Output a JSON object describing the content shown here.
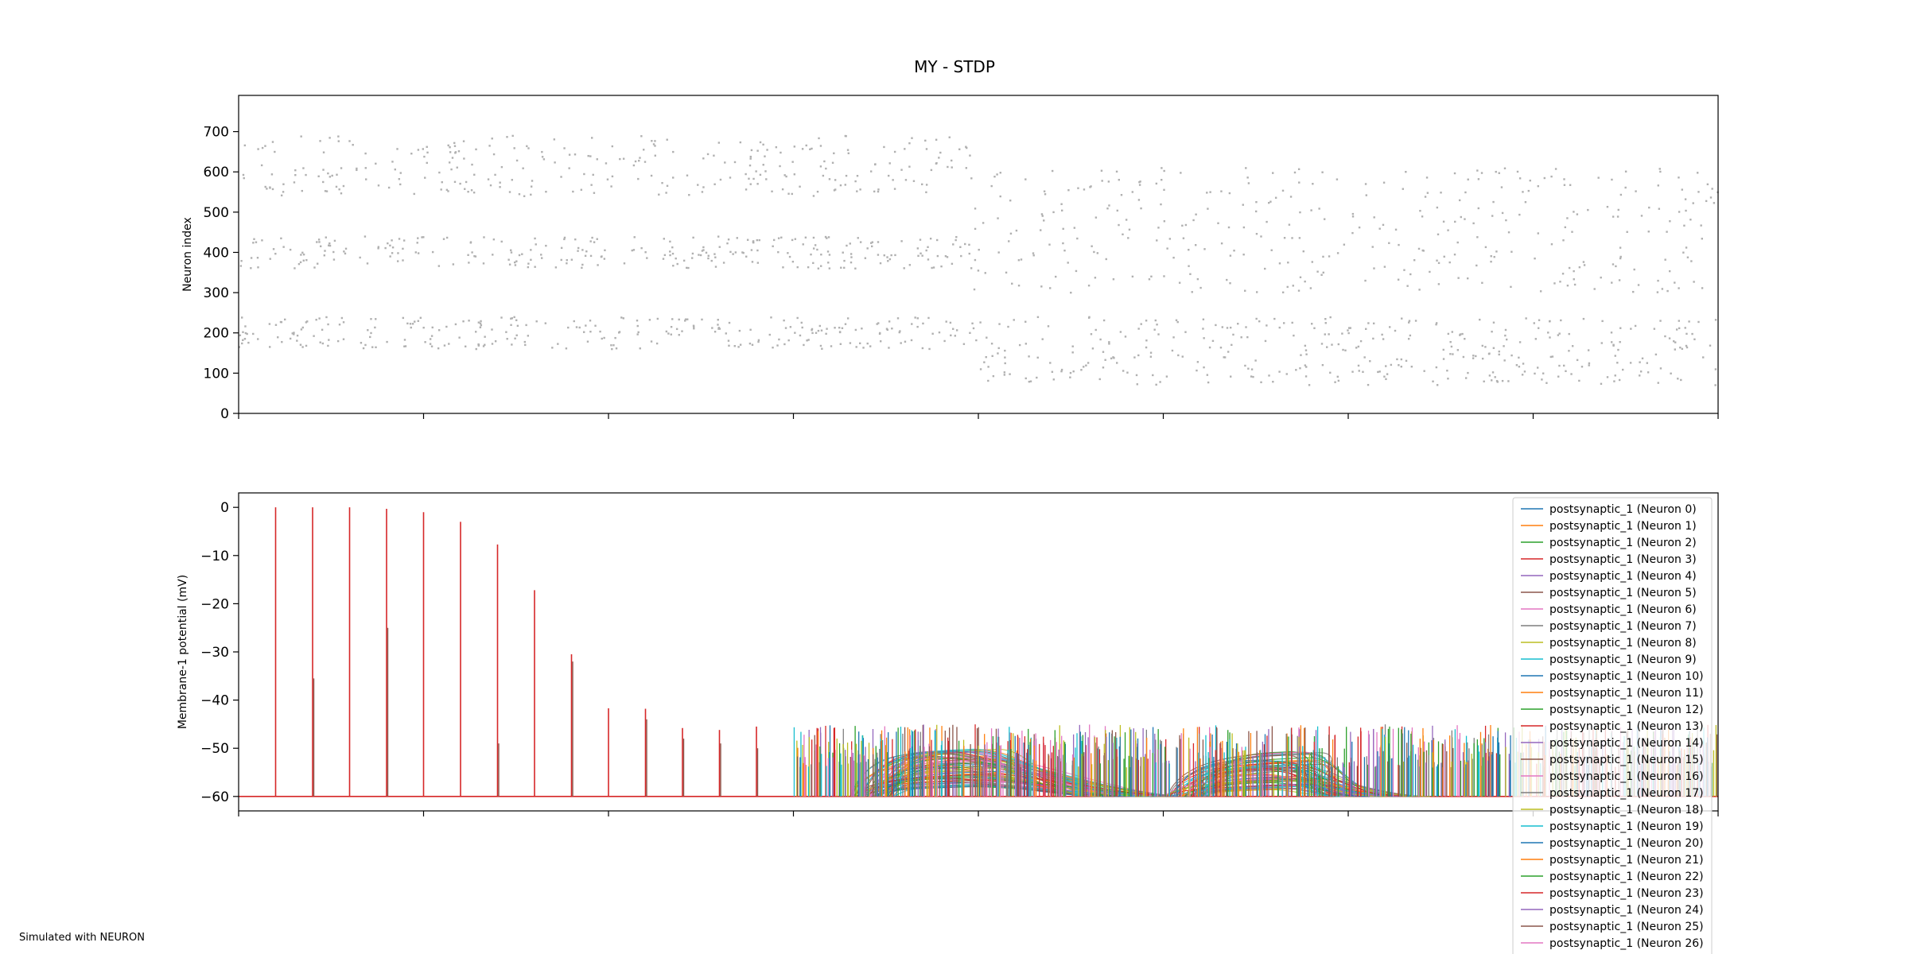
{
  "figure": {
    "title": "MY - STDP",
    "footer": "Simulated with NEURON"
  },
  "chart_data": [
    {
      "type": "scatter",
      "title": "",
      "xlabel": "",
      "ylabel": "Neuron index",
      "ylim": [
        0,
        790
      ],
      "xlim": [
        0,
        8
      ],
      "yticks": [
        0,
        100,
        200,
        300,
        400,
        500,
        600,
        700
      ],
      "xtick_count": 9,
      "show_xtick_labels": false,
      "grid": false,
      "marker_color": "#b0b0b0",
      "phases": [
        {
          "x_range": [
            0,
            3.97
          ],
          "bands": [
            [
              160,
              240
            ],
            [
              360,
              440
            ],
            [
              540,
              690
            ]
          ],
          "density": 1.0
        },
        {
          "x_range": [
            3.97,
            8
          ],
          "bands": [
            [
              70,
              240
            ],
            [
              300,
              610
            ]
          ],
          "density": 0.85
        }
      ]
    },
    {
      "type": "line",
      "title": "",
      "xlabel": "",
      "ylabel": "Membrane-1 potential (mV)",
      "ylim": [
        -63,
        3
      ],
      "xlim": [
        0,
        8
      ],
      "yticks": [
        0,
        -10,
        -20,
        -30,
        -40,
        -50,
        -60
      ],
      "xtick_count": 9,
      "show_xtick_labels": false,
      "grid": false,
      "resting_potential": -60,
      "spikes": [
        {
          "x": 0.2,
          "peak": 0,
          "dark_peak": -60
        },
        {
          "x": 0.4,
          "peak": 0,
          "dark_peak": -35.5
        },
        {
          "x": 0.6,
          "peak": 0,
          "dark_peak": -60
        },
        {
          "x": 0.8,
          "peak": -0.3,
          "dark_peak": -25
        },
        {
          "x": 1.0,
          "peak": -1,
          "dark_peak": -60
        },
        {
          "x": 1.2,
          "peak": -3,
          "dark_peak": -60
        },
        {
          "x": 1.4,
          "peak": -7.7,
          "dark_peak": -49
        },
        {
          "x": 1.6,
          "peak": -17.2,
          "dark_peak": -60
        },
        {
          "x": 1.8,
          "peak": -30.5,
          "dark_peak": -32
        },
        {
          "x": 2.0,
          "peak": -41.7,
          "dark_peak": -60
        },
        {
          "x": 2.2,
          "peak": -41.8,
          "dark_peak": -44
        },
        {
          "x": 2.4,
          "peak": -45.8,
          "dark_peak": -48
        },
        {
          "x": 2.6,
          "peak": -46.2,
          "dark_peak": -49
        },
        {
          "x": 2.8,
          "peak": -45.5,
          "dark_peak": -50
        }
      ],
      "dense_region": {
        "x_range": [
          3.0,
          8.0
        ],
        "peak_range": [
          -54,
          -45
        ],
        "base": -60
      },
      "bumps": [
        {
          "x_start": 3.3,
          "x_peak": 3.55,
          "x_end": 4.9,
          "peak_range": [
            -59,
            -50.5
          ]
        },
        {
          "x_start": 5.0,
          "x_peak": 5.3,
          "x_end": 6.2,
          "peak_range": [
            -59,
            -51
          ]
        }
      ],
      "legend": {
        "placement": "upper-right",
        "entries": [
          "postsynaptic_1 (Neuron 0)",
          "postsynaptic_1 (Neuron 1)",
          "postsynaptic_1 (Neuron 2)",
          "postsynaptic_1 (Neuron 3)",
          "postsynaptic_1 (Neuron 4)",
          "postsynaptic_1 (Neuron 5)",
          "postsynaptic_1 (Neuron 6)",
          "postsynaptic_1 (Neuron 7)",
          "postsynaptic_1 (Neuron 8)",
          "postsynaptic_1 (Neuron 9)",
          "postsynaptic_1 (Neuron 10)",
          "postsynaptic_1 (Neuron 11)",
          "postsynaptic_1 (Neuron 12)",
          "postsynaptic_1 (Neuron 13)",
          "postsynaptic_1 (Neuron 14)",
          "postsynaptic_1 (Neuron 15)",
          "postsynaptic_1 (Neuron 16)",
          "postsynaptic_1 (Neuron 17)",
          "postsynaptic_1 (Neuron 18)",
          "postsynaptic_1 (Neuron 19)",
          "postsynaptic_1 (Neuron 20)",
          "postsynaptic_1 (Neuron 21)",
          "postsynaptic_1 (Neuron 22)",
          "postsynaptic_1 (Neuron 23)",
          "postsynaptic_1 (Neuron 24)",
          "postsynaptic_1 (Neuron 25)",
          "postsynaptic_1 (Neuron 26)"
        ]
      },
      "colors": [
        "#1f77b4",
        "#ff7f0e",
        "#2ca02c",
        "#d62728",
        "#9467bd",
        "#8c564b",
        "#e377c2",
        "#7f7f7f",
        "#bcbd22",
        "#17becf"
      ]
    }
  ]
}
